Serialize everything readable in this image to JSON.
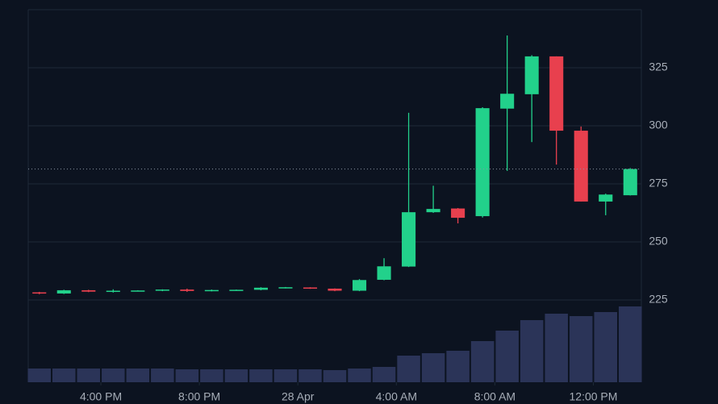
{
  "chart_data": {
    "type": "candlestick",
    "x": [
      0,
      1,
      2,
      3,
      4,
      5,
      6,
      7,
      8,
      9,
      10,
      11,
      12,
      13,
      14,
      15,
      16,
      17,
      18,
      19,
      20,
      21,
      22,
      23,
      24
    ],
    "open": [
      228.3,
      227.8,
      229.2,
      228.6,
      228.9,
      229.0,
      229.5,
      228.9,
      229.2,
      229.4,
      230.2,
      230.4,
      229.9,
      229.0,
      233.7,
      239.4,
      262.8,
      264.4,
      261.1,
      307.4,
      313.6,
      329.9,
      297.9,
      267.4,
      270.1
    ],
    "high": [
      228.5,
      229.4,
      229.4,
      229.6,
      229.2,
      229.6,
      229.9,
      229.5,
      229.5,
      230.5,
      230.6,
      230.5,
      230.0,
      234.0,
      243.0,
      305.6,
      274.2,
      264.6,
      308.0,
      338.9,
      330.4,
      329.9,
      299.7,
      270.8,
      281.8
    ],
    "low": [
      227.5,
      227.6,
      228.4,
      228.2,
      228.7,
      228.8,
      228.5,
      228.7,
      229.0,
      229.2,
      230.0,
      229.8,
      228.8,
      228.8,
      233.5,
      239.2,
      262.5,
      258.0,
      260.5,
      280.6,
      293.0,
      283.3,
      267.4,
      261.5,
      270.0
    ],
    "close": [
      227.8,
      229.2,
      228.6,
      229.0,
      229.1,
      229.5,
      228.9,
      229.3,
      229.4,
      230.3,
      230.5,
      229.9,
      229.0,
      233.6,
      239.5,
      262.8,
      264.2,
      260.4,
      307.6,
      313.8,
      329.9,
      297.9,
      267.4,
      270.4,
      281.4
    ],
    "up_color": "#22d18b",
    "down_color": "#e8404e",
    "volume": {
      "values": [
        17,
        17,
        17,
        17,
        17,
        17,
        16,
        16,
        16,
        16,
        16,
        16,
        15,
        17,
        19,
        33,
        36,
        39,
        51,
        64,
        77,
        85,
        82,
        87,
        94
      ],
      "color": "#2b3458",
      "vlim": [
        0,
        100
      ]
    },
    "xlim": [
      -0.45,
      24.45
    ],
    "xticks": [
      {
        "value": 2.5,
        "label": "4:00 PM"
      },
      {
        "value": 6.5,
        "label": "8:00 PM"
      },
      {
        "value": 10.5,
        "label": "28 Apr"
      },
      {
        "value": 14.5,
        "label": "4:00 AM"
      },
      {
        "value": 18.5,
        "label": "8:00 AM"
      },
      {
        "value": 22.5,
        "label": "12:00 PM"
      }
    ],
    "ylim": [
      189.6,
      350
    ],
    "yticks": [
      225,
      250,
      275,
      300,
      325
    ],
    "grid": true
  }
}
